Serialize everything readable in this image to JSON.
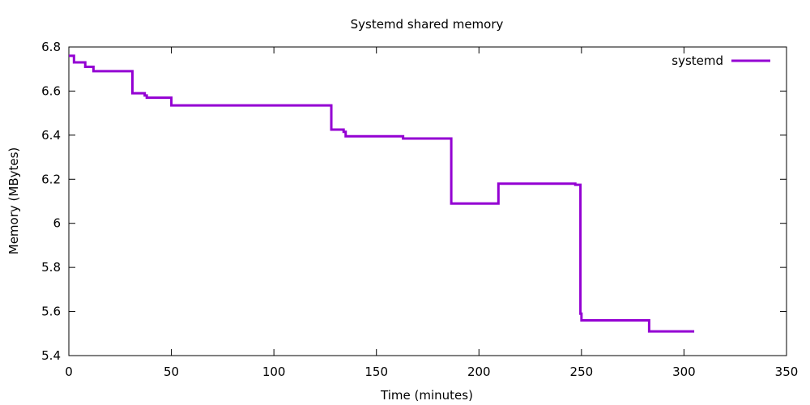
{
  "chart_data": {
    "type": "line",
    "title": "Systemd shared memory",
    "xlabel": "Time (minutes)",
    "ylabel": "Memory (MBytes)",
    "xlim": [
      0,
      350
    ],
    "ylim": [
      5.4,
      6.8
    ],
    "xticks": [
      0,
      50,
      100,
      150,
      200,
      250,
      300,
      350
    ],
    "yticks": [
      5.4,
      5.6,
      5.8,
      6.0,
      6.2,
      6.4,
      6.6,
      6.8
    ],
    "xtick_labels": [
      "0",
      "50",
      "100",
      "150",
      "200",
      "250",
      "300",
      "350"
    ],
    "ytick_labels": [
      "5.4",
      "5.6",
      "5.8",
      "6",
      "6.2",
      "6.4",
      "6.6",
      "6.8"
    ],
    "grid": false,
    "legend_position": "top-right",
    "series": [
      {
        "name": "systemd",
        "color": "#9400d3",
        "step": "post",
        "points": [
          [
            0,
            6.76
          ],
          [
            2.5,
            6.73
          ],
          [
            8,
            6.71
          ],
          [
            12,
            6.69
          ],
          [
            31,
            6.59
          ],
          [
            37,
            6.58
          ],
          [
            38,
            6.57
          ],
          [
            50,
            6.535
          ],
          [
            128,
            6.425
          ],
          [
            134,
            6.415
          ],
          [
            135,
            6.395
          ],
          [
            163,
            6.385
          ],
          [
            186,
            6.385
          ],
          [
            186.5,
            6.09
          ],
          [
            209,
            6.09
          ],
          [
            209.5,
            6.18
          ],
          [
            247,
            6.175
          ],
          [
            249.5,
            5.59
          ],
          [
            250,
            5.56
          ],
          [
            283,
            5.51
          ],
          [
            305,
            5.51
          ]
        ]
      }
    ]
  }
}
